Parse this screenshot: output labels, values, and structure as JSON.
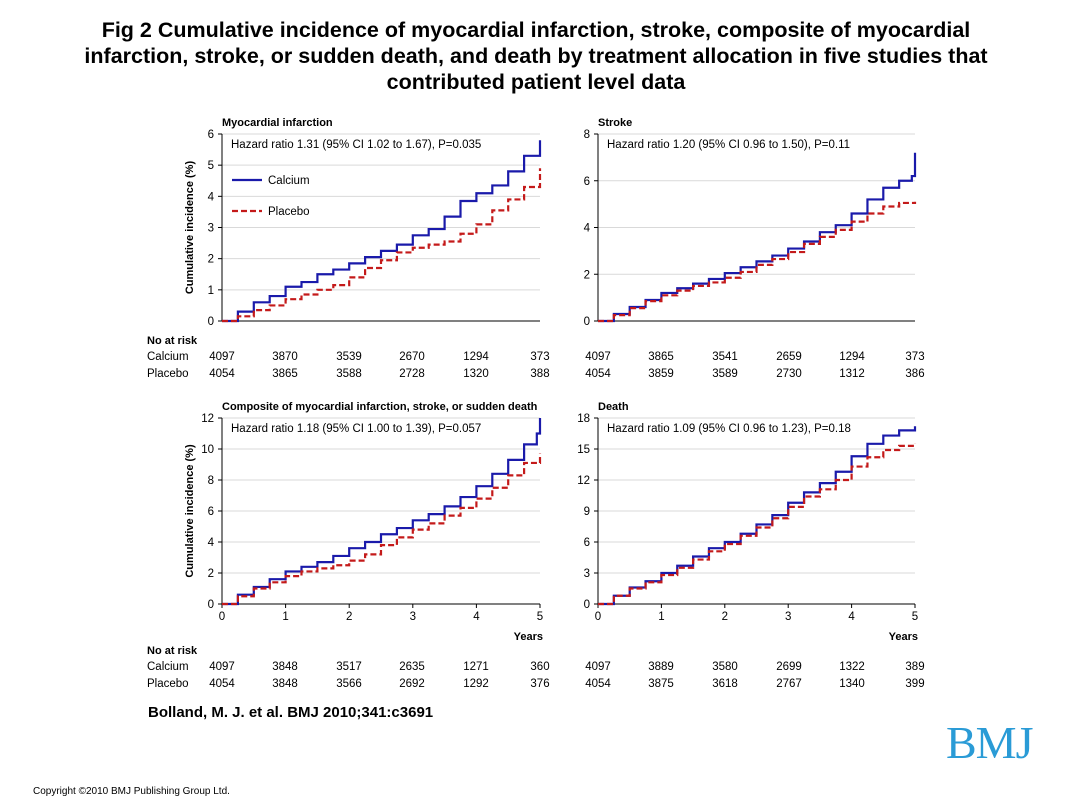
{
  "slide": {
    "title_lines": [
      "Fig 2 Cumulative incidence of myocardial infarction, stroke, composite of myocardial",
      "infarction, stroke, or sudden death, and death by treatment allocation in five studies that",
      "contributed patient level data"
    ],
    "citation": "Bolland, M. J. et al. BMJ 2010;341:c3691",
    "copyright": "Copyright ©2010 BMJ Publishing Group Ltd.",
    "logo_text": "BMJ"
  },
  "legend": {
    "calcium": "Calcium",
    "placebo": "Placebo"
  },
  "colors": {
    "calcium": "#1a1aaa",
    "placebo": "#c41a1a",
    "grid": "#d9d9d9"
  },
  "risk_table": {
    "header": "No at risk",
    "row_labels": [
      "Calcium",
      "Placebo"
    ]
  },
  "chart_data": [
    {
      "type": "line",
      "title": "Myocardial infarction",
      "annotation": "Hazard ratio 1.31 (95% CI 1.02 to 1.67), P=0.035",
      "ylabel": "Cumulative incidence (%)",
      "xlabel": "",
      "xlim": [
        0,
        5
      ],
      "ylim": [
        0,
        6
      ],
      "yticks": [
        0,
        1,
        2,
        3,
        4,
        5,
        6
      ],
      "xticks": [],
      "legend_shown": true,
      "grid": true,
      "series": [
        {
          "name": "Calcium",
          "x": [
            0,
            0.25,
            0.5,
            0.75,
            1,
            1.25,
            1.5,
            1.75,
            2,
            2.25,
            2.5,
            2.75,
            3,
            3.25,
            3.5,
            3.75,
            4,
            4.25,
            4.5,
            4.75,
            5
          ],
          "values": [
            0,
            0.3,
            0.6,
            0.8,
            1.1,
            1.25,
            1.5,
            1.65,
            1.85,
            2.05,
            2.25,
            2.45,
            2.75,
            2.95,
            3.35,
            3.85,
            4.1,
            4.35,
            4.8,
            5.3,
            5.8
          ]
        },
        {
          "name": "Placebo",
          "x": [
            0,
            0.25,
            0.5,
            0.75,
            1,
            1.25,
            1.5,
            1.75,
            2,
            2.25,
            2.5,
            2.75,
            3,
            3.25,
            3.5,
            3.75,
            4,
            4.25,
            4.5,
            4.75,
            5
          ],
          "values": [
            0,
            0.15,
            0.35,
            0.5,
            0.7,
            0.85,
            1.0,
            1.15,
            1.4,
            1.7,
            1.95,
            2.2,
            2.35,
            2.45,
            2.55,
            2.8,
            3.1,
            3.55,
            3.9,
            4.3,
            4.9
          ]
        }
      ],
      "at_risk": {
        "calcium": [
          "4097",
          "3870",
          "3539",
          "2670",
          "1294",
          "373"
        ],
        "placebo": [
          "4054",
          "3865",
          "3588",
          "2728",
          "1320",
          "388"
        ]
      }
    },
    {
      "type": "line",
      "title": "Stroke",
      "annotation": "Hazard ratio 1.20 (95% CI 0.96 to 1.50), P=0.11",
      "ylabel": "",
      "xlabel": "",
      "xlim": [
        0,
        5
      ],
      "ylim": [
        0,
        8
      ],
      "yticks": [
        0,
        2,
        4,
        6,
        8
      ],
      "xticks": [],
      "legend_shown": false,
      "grid": true,
      "series": [
        {
          "name": "Calcium",
          "x": [
            0,
            0.25,
            0.5,
            0.75,
            1,
            1.25,
            1.5,
            1.75,
            2,
            2.25,
            2.5,
            2.75,
            3,
            3.25,
            3.5,
            3.75,
            4,
            4.25,
            4.5,
            4.75,
            4.95,
            5
          ],
          "values": [
            0,
            0.3,
            0.6,
            0.9,
            1.2,
            1.4,
            1.6,
            1.8,
            2.05,
            2.3,
            2.55,
            2.8,
            3.1,
            3.4,
            3.8,
            4.1,
            4.6,
            5.2,
            5.7,
            6.0,
            6.2,
            7.2
          ]
        },
        {
          "name": "Placebo",
          "x": [
            0,
            0.25,
            0.5,
            0.75,
            1,
            1.25,
            1.5,
            1.75,
            2,
            2.25,
            2.5,
            2.75,
            3,
            3.25,
            3.5,
            3.75,
            4,
            4.25,
            4.5,
            4.75,
            5
          ],
          "values": [
            0,
            0.25,
            0.55,
            0.85,
            1.1,
            1.3,
            1.5,
            1.65,
            1.85,
            2.1,
            2.4,
            2.65,
            2.95,
            3.3,
            3.6,
            3.9,
            4.25,
            4.6,
            4.9,
            5.05,
            5.1
          ]
        }
      ],
      "at_risk": {
        "calcium": [
          "4097",
          "3865",
          "3541",
          "2659",
          "1294",
          "373"
        ],
        "placebo": [
          "4054",
          "3859",
          "3589",
          "2730",
          "1312",
          "386"
        ]
      }
    },
    {
      "type": "line",
      "title": "Composite of myocardial infarction, stroke, or sudden death",
      "annotation": "Hazard ratio 1.18 (95% CI 1.00 to 1.39), P=0.057",
      "ylabel": "Cumulative incidence (%)",
      "xlabel": "Years",
      "xlim": [
        0,
        5
      ],
      "ylim": [
        0,
        12
      ],
      "yticks": [
        0,
        2,
        4,
        6,
        8,
        10,
        12
      ],
      "xticks": [
        0,
        1,
        2,
        3,
        4,
        5
      ],
      "legend_shown": false,
      "grid": true,
      "series": [
        {
          "name": "Calcium",
          "x": [
            0,
            0.25,
            0.5,
            0.75,
            1,
            1.25,
            1.5,
            1.75,
            2,
            2.25,
            2.5,
            2.75,
            3,
            3.25,
            3.5,
            3.75,
            4,
            4.25,
            4.5,
            4.75,
            4.95,
            5
          ],
          "values": [
            0,
            0.6,
            1.1,
            1.6,
            2.1,
            2.4,
            2.7,
            3.1,
            3.6,
            4.0,
            4.5,
            4.9,
            5.4,
            5.8,
            6.3,
            6.9,
            7.6,
            8.4,
            9.3,
            10.3,
            11.0,
            12.0
          ]
        },
        {
          "name": "Placebo",
          "x": [
            0,
            0.25,
            0.5,
            0.75,
            1,
            1.25,
            1.5,
            1.75,
            2,
            2.25,
            2.5,
            2.75,
            3,
            3.25,
            3.5,
            3.75,
            4,
            4.25,
            4.5,
            4.75,
            5
          ],
          "values": [
            0,
            0.5,
            1.0,
            1.4,
            1.8,
            2.1,
            2.3,
            2.5,
            2.8,
            3.2,
            3.8,
            4.3,
            4.8,
            5.2,
            5.7,
            6.2,
            6.8,
            7.5,
            8.3,
            9.1,
            9.7
          ]
        }
      ],
      "at_risk": {
        "calcium": [
          "4097",
          "3848",
          "3517",
          "2635",
          "1271",
          "360"
        ],
        "placebo": [
          "4054",
          "3848",
          "3566",
          "2692",
          "1292",
          "376"
        ]
      }
    },
    {
      "type": "line",
      "title": "Death",
      "annotation": "Hazard ratio 1.09 (95% CI 0.96 to 1.23), P=0.18",
      "ylabel": "",
      "xlabel": "Years",
      "xlim": [
        0,
        5
      ],
      "ylim": [
        0,
        18
      ],
      "yticks": [
        0,
        3,
        6,
        9,
        12,
        15,
        18
      ],
      "xticks": [
        0,
        1,
        2,
        3,
        4,
        5
      ],
      "legend_shown": false,
      "grid": true,
      "series": [
        {
          "name": "Calcium",
          "x": [
            0,
            0.25,
            0.5,
            0.75,
            1,
            1.25,
            1.5,
            1.75,
            2,
            2.25,
            2.5,
            2.75,
            3,
            3.25,
            3.5,
            3.75,
            4,
            4.25,
            4.5,
            4.75,
            5
          ],
          "values": [
            0,
            0.8,
            1.6,
            2.2,
            3.0,
            3.7,
            4.6,
            5.4,
            6.0,
            6.8,
            7.7,
            8.6,
            9.8,
            10.8,
            11.7,
            12.8,
            14.3,
            15.5,
            16.3,
            16.8,
            17.2
          ]
        },
        {
          "name": "Placebo",
          "x": [
            0,
            0.25,
            0.5,
            0.75,
            1,
            1.25,
            1.5,
            1.75,
            2,
            2.25,
            2.5,
            2.75,
            3,
            3.25,
            3.5,
            3.75,
            4,
            4.25,
            4.5,
            4.75,
            5
          ],
          "values": [
            0,
            0.8,
            1.5,
            2.1,
            2.8,
            3.5,
            4.3,
            5.1,
            5.8,
            6.6,
            7.4,
            8.3,
            9.4,
            10.4,
            11.1,
            12.0,
            13.3,
            14.2,
            14.9,
            15.3,
            15.5
          ]
        }
      ],
      "at_risk": {
        "calcium": [
          "4097",
          "3889",
          "3580",
          "2699",
          "1322",
          "389"
        ],
        "placebo": [
          "4054",
          "3875",
          "3618",
          "2767",
          "1340",
          "399"
        ]
      }
    }
  ]
}
